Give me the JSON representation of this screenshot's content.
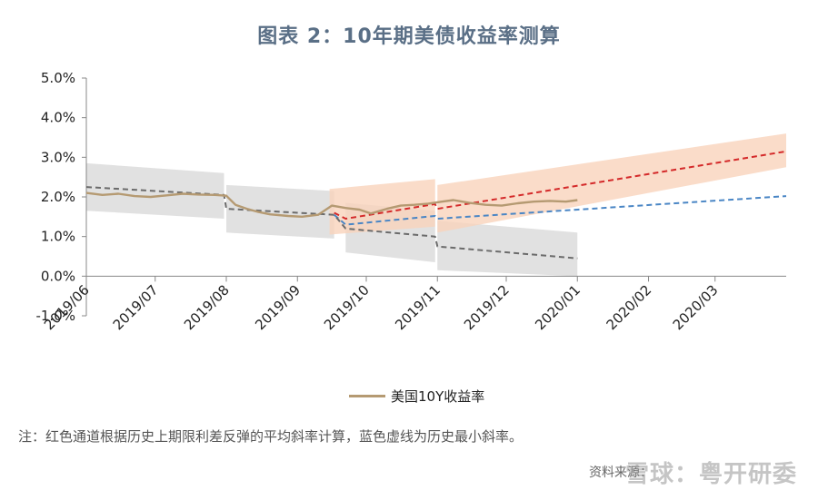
{
  "title": "图表 2：10年期美债收益率测算",
  "legend": {
    "label": "美国10Y收益率"
  },
  "note": "注：红色通道根据历史上期限利差反弹的平均斜率计算，蓝色虚线为历史最小斜率。",
  "source": "资料来源：",
  "watermark": "雪球：粤开研委",
  "colors": {
    "yield": "#b59a72",
    "red_channel": "#f9d3bc",
    "red_line": "#d42a2a",
    "blue_line": "#4a86c5",
    "gray_band": "#dcdcdc",
    "gray_line": "#6b6b6b"
  },
  "chart_data": {
    "type": "line",
    "x_type": "date",
    "xlim": [
      "2019-06-01",
      "2020-04-01"
    ],
    "ylim": [
      -1.0,
      5.0
    ],
    "yticks": [
      "5.0%",
      "4.0%",
      "3.0%",
      "2.0%",
      "1.0%",
      "0.0%",
      "-1.0%"
    ],
    "xticks": [
      "2019/06",
      "2019/07",
      "2019/08",
      "2019/09",
      "2019/10",
      "2019/11",
      "2019/12",
      "2020/01",
      "2020/02",
      "2020/03"
    ],
    "series": [
      {
        "name": "美国10Y收益率",
        "style": "solid",
        "x": [
          "2019-06-01",
          "2019-06-08",
          "2019-06-15",
          "2019-06-22",
          "2019-06-29",
          "2019-07-06",
          "2019-07-13",
          "2019-07-20",
          "2019-07-27",
          "2019-08-01",
          "2019-08-05",
          "2019-08-10",
          "2019-08-15",
          "2019-08-20",
          "2019-08-28",
          "2019-09-03",
          "2019-09-10",
          "2019-09-16",
          "2019-09-22",
          "2019-09-28",
          "2019-10-03",
          "2019-10-10",
          "2019-10-16",
          "2019-10-22",
          "2019-10-28",
          "2019-11-03",
          "2019-11-08",
          "2019-11-15",
          "2019-11-22",
          "2019-11-29",
          "2019-12-06",
          "2019-12-13",
          "2019-12-20",
          "2019-12-27",
          "2020-01-01"
        ],
        "y": [
          2.1,
          2.05,
          2.08,
          2.02,
          2.0,
          2.04,
          2.08,
          2.06,
          2.05,
          2.03,
          1.8,
          1.7,
          1.62,
          1.56,
          1.52,
          1.5,
          1.55,
          1.78,
          1.72,
          1.68,
          1.58,
          1.7,
          1.78,
          1.8,
          1.83,
          1.88,
          1.92,
          1.85,
          1.8,
          1.78,
          1.84,
          1.88,
          1.9,
          1.88,
          1.92
        ]
      },
      {
        "name": "",
        "style": "red-dashed",
        "x": [
          "2019-09-17",
          "2019-09-22",
          "2019-10-31",
          "2019-11-01",
          "2020-04-01"
        ],
        "y": [
          1.6,
          1.45,
          1.82,
          1.7,
          3.15
        ]
      },
      {
        "name": "",
        "style": "blue-dashed",
        "x": [
          "2019-09-17",
          "2019-09-22",
          "2019-10-31",
          "2019-11-01",
          "2020-04-01"
        ],
        "y": [
          1.55,
          1.3,
          1.52,
          1.45,
          2.02
        ]
      },
      {
        "name": "",
        "style": "gray-dashed",
        "x": [
          "2019-06-01",
          "2019-07-31",
          "2019-08-01",
          "2019-09-17",
          "2019-09-22",
          "2019-10-31",
          "2019-11-01",
          "2020-01-01"
        ],
        "y": [
          2.25,
          2.05,
          1.7,
          1.55,
          1.2,
          1.0,
          0.75,
          0.45
        ]
      }
    ],
    "bands": [
      {
        "name": "",
        "color": "gray",
        "segments": [
          {
            "x": [
              "2019-06-01",
              "2019-07-31"
            ],
            "upper": [
              2.85,
              2.6
            ],
            "lower": [
              1.65,
              1.45
            ]
          },
          {
            "x": [
              "2019-08-01",
              "2019-09-17"
            ],
            "upper": [
              2.3,
              2.15
            ],
            "lower": [
              1.1,
              0.95
            ]
          },
          {
            "x": [
              "2019-09-22",
              "2019-10-31"
            ],
            "upper": [
              1.85,
              1.65
            ],
            "lower": [
              0.6,
              0.35
            ]
          },
          {
            "x": [
              "2019-11-01",
              "2020-01-01"
            ],
            "upper": [
              1.4,
              1.1
            ],
            "lower": [
              0.15,
              0.0
            ]
          }
        ]
      },
      {
        "name": "",
        "color": "red",
        "segments": [
          {
            "x": [
              "2019-09-15",
              "2019-10-31"
            ],
            "upper": [
              2.2,
              2.45
            ],
            "lower": [
              1.05,
              1.25
            ]
          },
          {
            "x": [
              "2019-11-01",
              "2020-04-01"
            ],
            "upper": [
              2.3,
              3.6
            ],
            "lower": [
              1.1,
              2.75
            ]
          }
        ]
      }
    ],
    "grid": false,
    "legend_position": "bottom"
  }
}
